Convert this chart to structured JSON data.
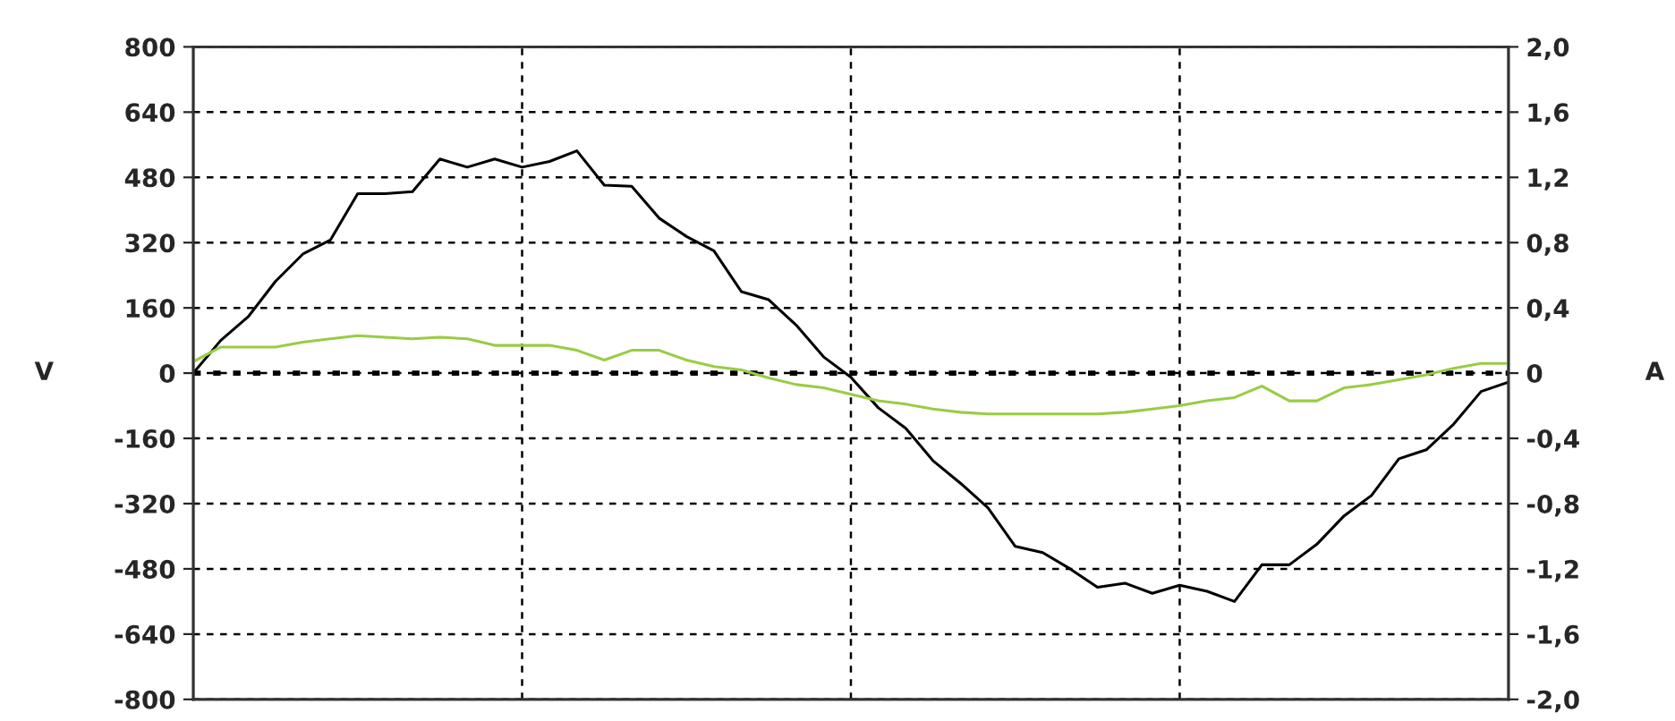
{
  "chart_data": {
    "type": "line",
    "ylabel": "V",
    "y2label": "A",
    "categories": [
      null,
      null,
      null,
      null,
      null,
      null,
      null,
      null,
      null,
      null,
      null,
      null,
      null,
      null,
      null,
      null,
      null,
      null,
      null,
      null,
      null,
      null,
      null,
      null,
      null,
      null,
      null,
      null,
      null,
      null,
      null,
      null,
      null,
      null,
      null,
      null,
      null,
      null,
      null,
      null,
      null,
      null,
      null,
      null,
      null,
      null,
      null,
      null,
      null
    ],
    "series": [
      {
        "color": "#000000",
        "values": [
          0,
          80,
          138,
          225,
          292,
          326,
          440,
          440,
          445,
          525,
          505,
          525,
          505,
          519,
          545,
          461,
          458,
          380,
          335,
          300,
          200,
          180,
          118,
          40,
          -10,
          -85,
          -135,
          -215,
          -270,
          -330,
          -425,
          -440,
          -480,
          -525,
          -515,
          -540,
          -520,
          -535,
          -560,
          -470,
          -470,
          -420,
          -350,
          -300,
          -210,
          -188,
          -125,
          -45,
          -22
        ]
      },
      {
        "color": "#99cc44",
        "axis": "y2",
        "values": [
          0.07,
          0.16,
          0.16,
          0.16,
          0.19,
          0.21,
          0.23,
          0.22,
          0.21,
          0.22,
          0.21,
          0.17,
          0.17,
          0.17,
          0.14,
          0.08,
          0.14,
          0.14,
          0.08,
          0.04,
          0.02,
          -0.03,
          -0.07,
          -0.09,
          -0.13,
          -0.17,
          -0.19,
          -0.22,
          -0.24,
          -0.25,
          -0.25,
          -0.25,
          -0.25,
          -0.25,
          -0.24,
          -0.22,
          -0.2,
          -0.17,
          -0.15,
          -0.08,
          -0.17,
          -0.17,
          -0.09,
          -0.07,
          -0.04,
          -0.01,
          0.03,
          0.06,
          0.06
        ]
      }
    ],
    "ylim": [
      -800,
      800
    ],
    "yticks": [
      -800,
      -640,
      -480,
      -320,
      -160,
      0,
      160,
      320,
      480,
      640,
      800
    ],
    "y2lim": [
      -2.0,
      2.0
    ],
    "y2ticks": [
      {
        "value": -2.0,
        "label": "-2,0"
      },
      {
        "value": -1.6,
        "label": "-1,6"
      },
      {
        "value": -1.2,
        "label": "-1,2"
      },
      {
        "value": -0.8,
        "label": "-0,8"
      },
      {
        "value": -0.4,
        "label": "-0,4"
      },
      {
        "value": 0,
        "label": "0"
      },
      {
        "value": 0.4,
        "label": "0,4"
      },
      {
        "value": 0.8,
        "label": "0,8"
      },
      {
        "value": 1.2,
        "label": "1,2"
      },
      {
        "value": 1.6,
        "label": "1,6"
      },
      {
        "value": 2.0,
        "label": "2,0"
      }
    ],
    "ref_lines": [
      {
        "axis": "y",
        "value": 0,
        "color": "#000000",
        "line_style": "dotted"
      }
    ],
    "grid": true,
    "legend": false
  }
}
